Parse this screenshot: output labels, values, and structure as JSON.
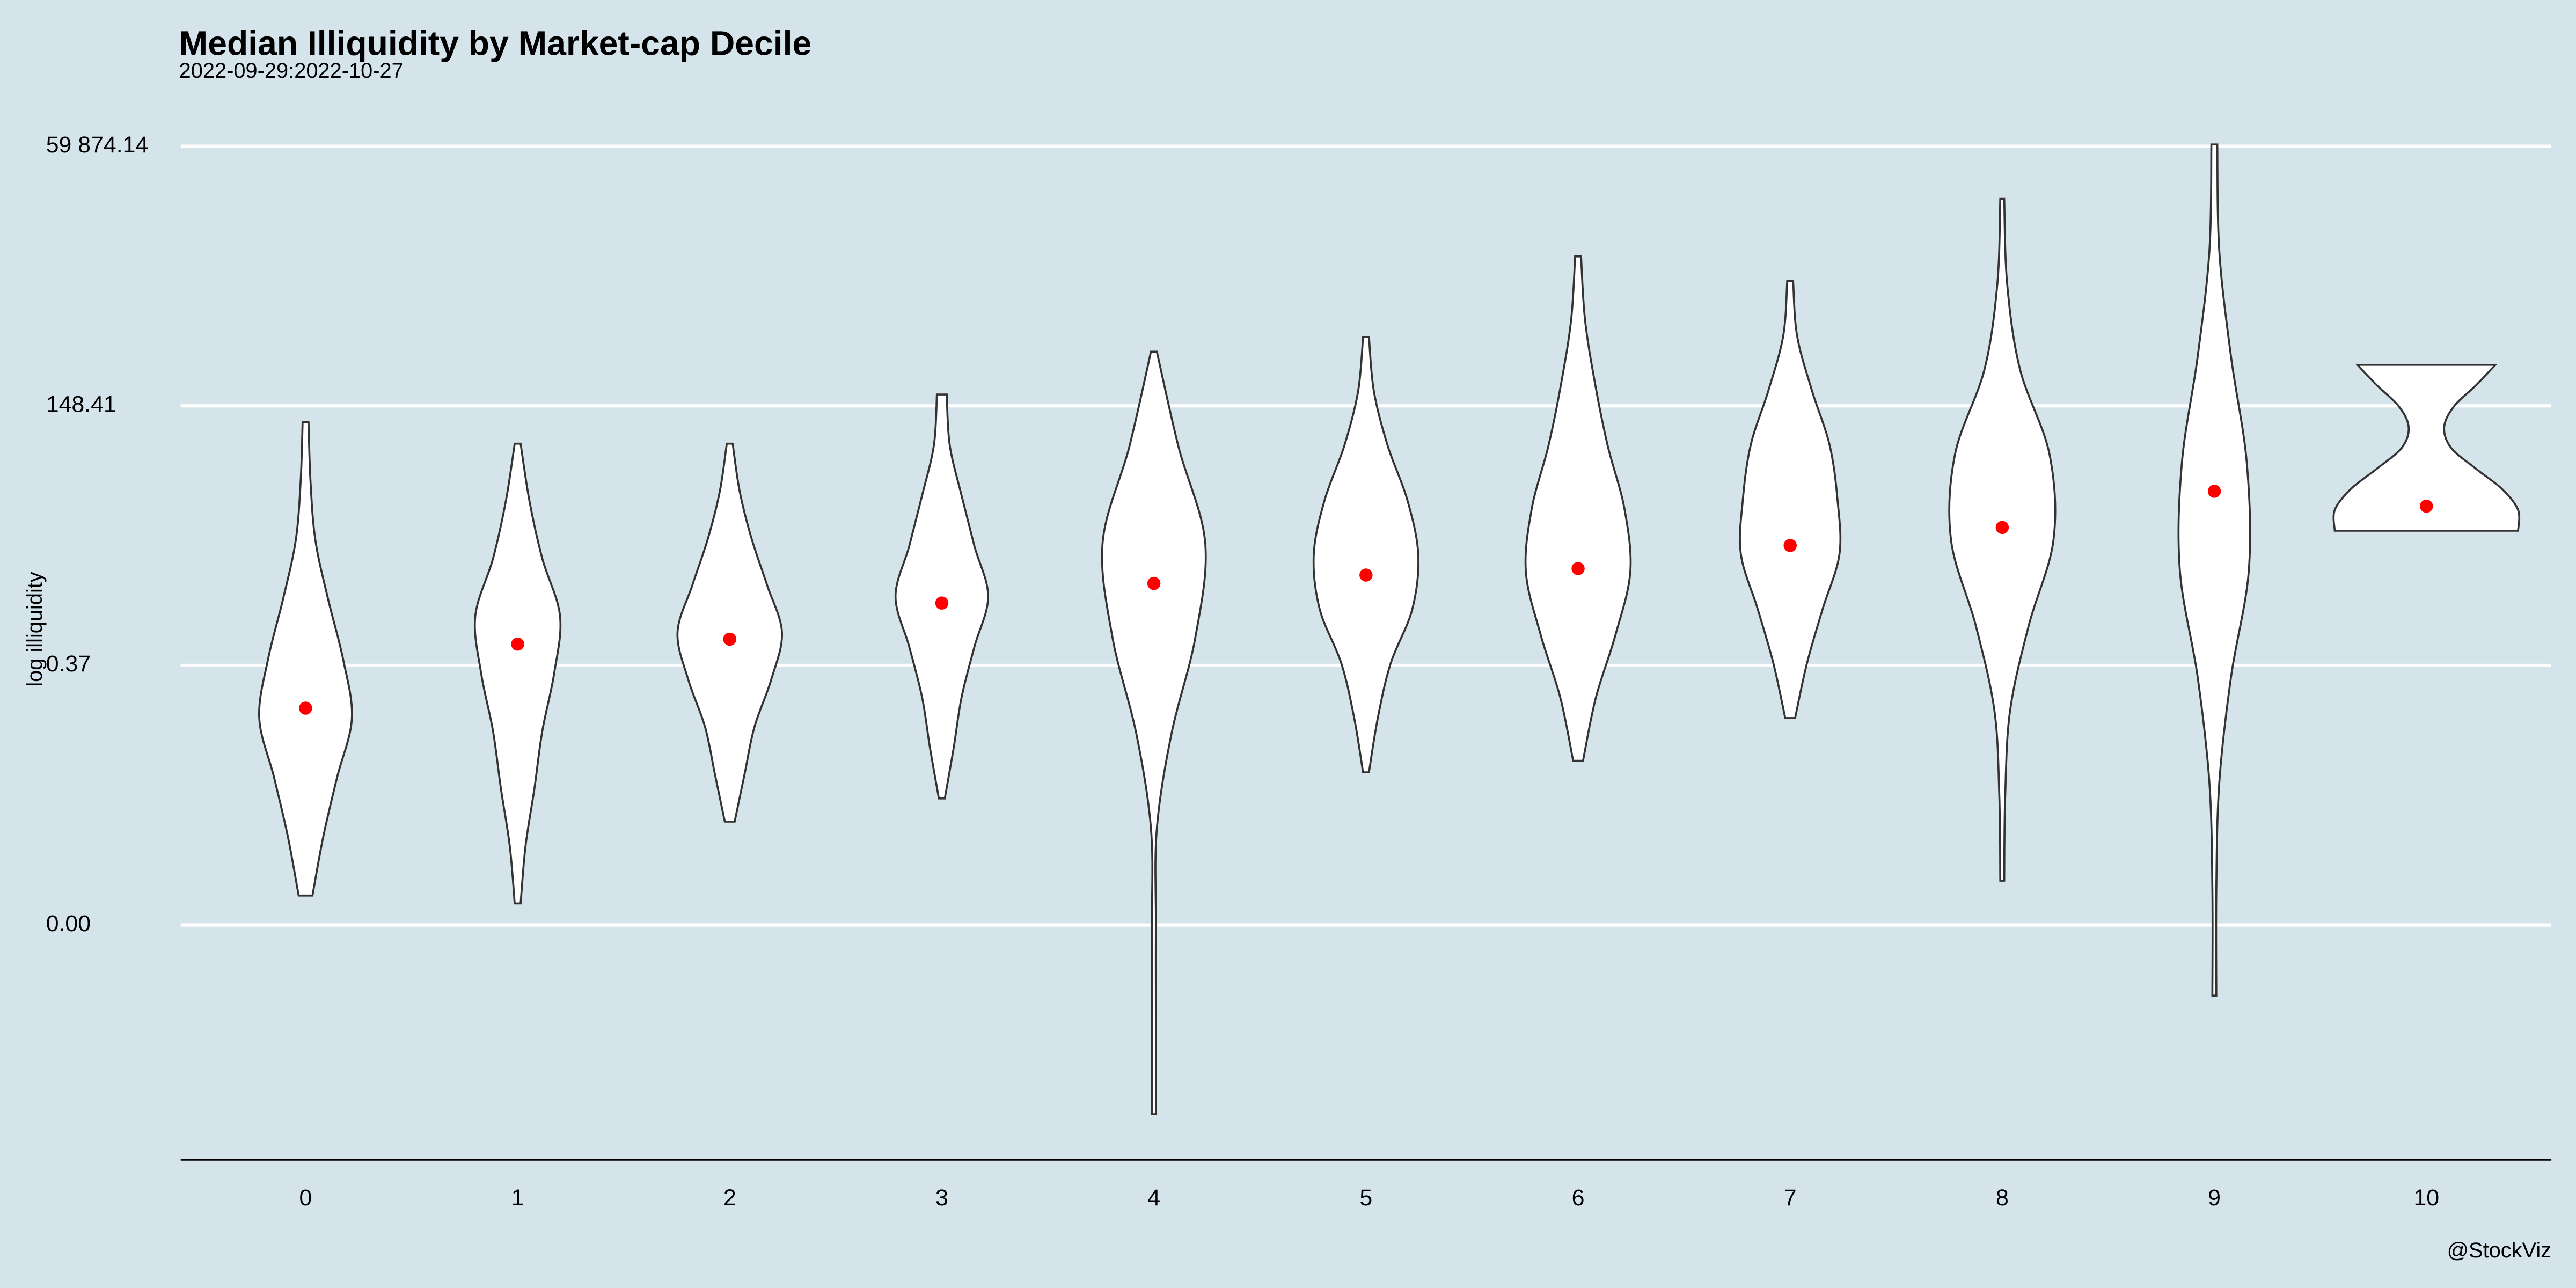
{
  "chart_data": {
    "type": "violin",
    "title": "Median Illiquidity by Market-cap Decile",
    "subtitle": "2022-09-29:2022-10-27",
    "y_label": "log illiquidity",
    "caption": "@StockViz",
    "log_scale": true,
    "grid": true,
    "fill_color": "#ffffff",
    "outline_color": "#333333",
    "median_color": "#ff0000",
    "ylim": [
      4e-06,
      80000
    ],
    "yticks": [
      {
        "value": 0.000912,
        "label": "0.00"
      },
      {
        "value": 0.3679,
        "label": "0.37"
      },
      148.41,
      {
        "value": 59874.14,
        "label": "59 874.14"
      }
    ],
    "categories": [
      "0",
      "1",
      "2",
      "3",
      "4",
      "5",
      "6",
      "7",
      "8",
      "9",
      "10"
    ],
    "medians": [
      0.137,
      0.602,
      0.675,
      1.556,
      2.45,
      2.97,
      3.45,
      5.88,
      8.93,
      20.6,
      14.6
    ],
    "maxs": [
      101.5,
      61.9,
      61.9,
      193,
      519,
      730,
      4695,
      2655,
      17740,
      62400,
      383
    ],
    "mins": [
      0.0018,
      0.0015,
      0.00995,
      0.017,
      1.15e-05,
      0.0311,
      0.0406,
      0.109,
      0.00254,
      0.000178,
      8.27
    ],
    "densities": [
      [
        0.03,
        0.05,
        0.1,
        0.23,
        0.38,
        0.47,
        0.32,
        0.18,
        0.07
      ],
      [
        0.03,
        0.12,
        0.25,
        0.43,
        0.37,
        0.25,
        0.17,
        0.08,
        0.03
      ],
      [
        0.03,
        0.1,
        0.22,
        0.38,
        0.53,
        0.42,
        0.25,
        0.15,
        0.05
      ],
      [
        0.05,
        0.08,
        0.2,
        0.33,
        0.47,
        0.33,
        0.2,
        0.12,
        0.03
      ],
      [
        0.03,
        0.25,
        0.52,
        0.42,
        0.18,
        0.03,
        0.02,
        0.02,
        0.02
      ],
      [
        0.03,
        0.08,
        0.22,
        0.42,
        0.53,
        0.47,
        0.25,
        0.12,
        0.03
      ],
      [
        0.03,
        0.07,
        0.17,
        0.3,
        0.47,
        0.53,
        0.38,
        0.18,
        0.05
      ],
      [
        0.03,
        0.07,
        0.22,
        0.4,
        0.48,
        0.5,
        0.33,
        0.17,
        0.05
      ],
      [
        0.02,
        0.05,
        0.18,
        0.48,
        0.52,
        0.27,
        0.08,
        0.03,
        0.02
      ],
      [
        0.03,
        0.05,
        0.17,
        0.33,
        0.35,
        0.17,
        0.05,
        0.02,
        0.02
      ],
      [
        0.7,
        0.5,
        0.28,
        0.18,
        0.25,
        0.5,
        0.77,
        0.93,
        0.93
      ]
    ]
  }
}
